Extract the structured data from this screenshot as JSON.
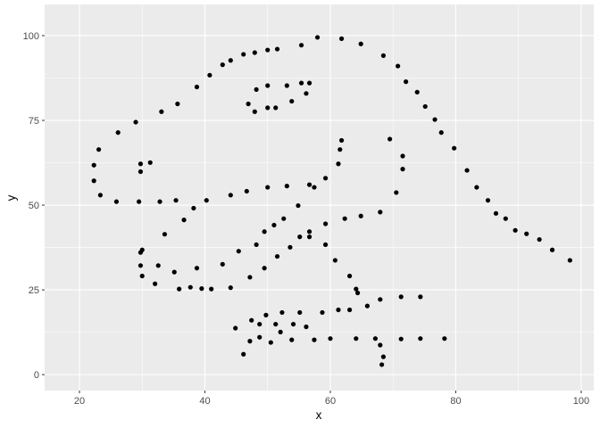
{
  "chart_data": {
    "type": "scatter",
    "title": "",
    "xlabel": "x",
    "ylabel": "y",
    "xlim": [
      14.45,
      102
    ],
    "ylim": [
      -4.7,
      109.2
    ],
    "xticks": [
      20,
      40,
      60,
      80,
      100
    ],
    "yticks": [
      0,
      25,
      50,
      75,
      100
    ],
    "grid": true,
    "panel_background": "#ebebeb",
    "point_color": "#000000",
    "points": [
      [
        55.3846,
        97.1795
      ],
      [
        51.5385,
        96.0256
      ],
      [
        46.1538,
        94.4872
      ],
      [
        42.8205,
        91.4103
      ],
      [
        40.7692,
        88.3333
      ],
      [
        38.7179,
        84.8718
      ],
      [
        35.641,
        79.8718
      ],
      [
        33.0769,
        77.5641
      ],
      [
        28.9744,
        74.4872
      ],
      [
        26.1538,
        71.4103
      ],
      [
        23.0769,
        66.4103
      ],
      [
        22.3077,
        61.7949
      ],
      [
        22.3077,
        57.1795
      ],
      [
        23.3333,
        52.9487
      ],
      [
        25.8974,
        51.0256
      ],
      [
        29.4872,
        51.0256
      ],
      [
        32.8205,
        51.0256
      ],
      [
        35.3846,
        51.4103
      ],
      [
        40.2564,
        51.4103
      ],
      [
        44.1026,
        52.9487
      ],
      [
        46.6667,
        54.1026
      ],
      [
        50,
        55.2564
      ],
      [
        53.0769,
        55.641
      ],
      [
        56.6667,
        56.0256
      ],
      [
        59.2308,
        57.9487
      ],
      [
        61.2821,
        62.1795
      ],
      [
        61.5385,
        66.4103
      ],
      [
        61.7949,
        69.1026
      ],
      [
        57.4359,
        55.2564
      ],
      [
        54.8718,
        49.8718
      ],
      [
        52.5641,
        46.0256
      ],
      [
        48.2051,
        38.3333
      ],
      [
        49.4872,
        42.1795
      ],
      [
        51.0256,
        44.1026
      ],
      [
        45.3846,
        36.4103
      ],
      [
        42.8205,
        32.5641
      ],
      [
        38.7179,
        31.4103
      ],
      [
        35.1282,
        30.2564
      ],
      [
        32.5641,
        32.1795
      ],
      [
        30,
        36.7949
      ],
      [
        33.5897,
        41.4103
      ],
      [
        36.6667,
        45.641
      ],
      [
        38.2051,
        49.1026
      ],
      [
        29.7436,
        36.0256
      ],
      [
        29.7436,
        32.1795
      ],
      [
        30,
        29.1026
      ],
      [
        32.0513,
        26.7949
      ],
      [
        35.8974,
        25.2564
      ],
      [
        41.0256,
        25.2564
      ],
      [
        44.1026,
        25.641
      ],
      [
        47.1795,
        28.718
      ],
      [
        49.4872,
        31.4103
      ],
      [
        51.5385,
        34.8718
      ],
      [
        53.5897,
        37.5641
      ],
      [
        55.1282,
        40.641
      ],
      [
        56.6667,
        42.1795
      ],
      [
        59.2308,
        44.4872
      ],
      [
        62.3077,
        46.0256
      ],
      [
        64.8718,
        46.7949
      ],
      [
        67.9487,
        47.9487
      ],
      [
        70.5128,
        53.718
      ],
      [
        71.5385,
        60.641
      ],
      [
        71.5385,
        64.4872
      ],
      [
        69.4872,
        69.4872
      ],
      [
        46.9231,
        79.8718
      ],
      [
        48.2051,
        84.1026
      ],
      [
        50,
        85.2564
      ],
      [
        53.0769,
        85.2564
      ],
      [
        55.3846,
        86.0256
      ],
      [
        56.6667,
        86.0256
      ],
      [
        56.1538,
        82.9487
      ],
      [
        53.8462,
        80.641
      ],
      [
        51.2821,
        78.718
      ],
      [
        50,
        78.718
      ],
      [
        47.9487,
        77.5641
      ],
      [
        29.7436,
        59.8718
      ],
      [
        29.7436,
        62.1795
      ],
      [
        31.2821,
        62.5641
      ],
      [
        57.9487,
        99.4872
      ],
      [
        61.7949,
        99.1026
      ],
      [
        64.8718,
        97.5641
      ],
      [
        68.4615,
        94.1026
      ],
      [
        70.7692,
        91.0256
      ],
      [
        72.0513,
        86.4103
      ],
      [
        73.8462,
        83.3333
      ],
      [
        75.1282,
        79.1026
      ],
      [
        76.6667,
        75.2564
      ],
      [
        77.6923,
        71.4103
      ],
      [
        79.7436,
        66.7949
      ],
      [
        81.7949,
        60.2564
      ],
      [
        83.3333,
        55.2564
      ],
      [
        85.1282,
        51.4103
      ],
      [
        86.4103,
        47.5641
      ],
      [
        87.9487,
        46.0256
      ],
      [
        89.4872,
        42.5641
      ],
      [
        93.3333,
        39.8718
      ],
      [
        95.3846,
        36.7949
      ],
      [
        98.2051,
        33.718
      ],
      [
        56.6667,
        40.641
      ],
      [
        59.2308,
        38.3333
      ],
      [
        60.7692,
        33.718
      ],
      [
        63.0769,
        29.1026
      ],
      [
        64.1026,
        25.2564
      ],
      [
        64.359,
        24.1026
      ],
      [
        74.359,
        22.9487
      ],
      [
        71.2821,
        22.9487
      ],
      [
        67.9487,
        22.1795
      ],
      [
        65.8974,
        20.2564
      ],
      [
        63.0769,
        19.1026
      ],
      [
        61.2821,
        19.1026
      ],
      [
        58.7179,
        18.3333
      ],
      [
        55.1282,
        18.3333
      ],
      [
        52.3077,
        18.3333
      ],
      [
        49.7436,
        17.5641
      ],
      [
        47.4359,
        16.0256
      ],
      [
        44.8718,
        13.7179
      ],
      [
        48.7179,
        14.8718
      ],
      [
        51.2821,
        14.8718
      ],
      [
        54.1026,
        14.8718
      ],
      [
        56.1538,
        14.1026
      ],
      [
        52.0513,
        12.5641
      ],
      [
        48.7179,
        11.0256
      ],
      [
        47.1795,
        9.8718
      ],
      [
        46.1538,
        6.0256
      ],
      [
        50.5128,
        9.4872
      ],
      [
        53.8462,
        10.2564
      ],
      [
        57.4359,
        10.2564
      ],
      [
        60,
        10.641
      ],
      [
        64.1026,
        10.641
      ],
      [
        67.1795,
        10.641
      ],
      [
        71.2821,
        10.5128
      ],
      [
        74.359,
        10.641
      ],
      [
        78.2051,
        10.641
      ],
      [
        67.9487,
        8.718
      ],
      [
        68.4615,
        5.2564
      ],
      [
        68.2051,
        2.9487
      ],
      [
        37.6923,
        25.7692
      ],
      [
        39.4872,
        25.3846
      ],
      [
        91.2821,
        41.5385
      ],
      [
        50,
        95.7692
      ],
      [
        47.9487,
        95
      ],
      [
        44.1026,
        92.6923
      ]
    ]
  }
}
